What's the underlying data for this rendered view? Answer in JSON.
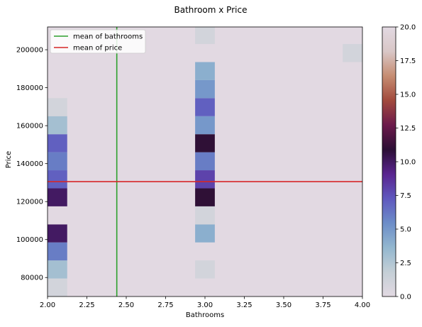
{
  "chart_data": {
    "type": "heatmap",
    "title": "Bathroom x Price",
    "xlabel": "Bathrooms",
    "ylabel": "Price",
    "xlim": [
      2.0,
      4.0
    ],
    "ylim": [
      70000,
      212000
    ],
    "xticks": [
      "2.00",
      "2.25",
      "2.50",
      "2.75",
      "3.00",
      "3.25",
      "3.50",
      "3.75",
      "4.00"
    ],
    "yticks": [
      "80000",
      "100000",
      "120000",
      "140000",
      "160000",
      "180000",
      "200000"
    ],
    "bin_width": 0.125,
    "bin_height": 9500,
    "background_count": 0,
    "cells": [
      {
        "x": 2.0625,
        "y": 74750,
        "count": 1
      },
      {
        "x": 2.0625,
        "y": 84250,
        "count": 3
      },
      {
        "x": 2.0625,
        "y": 93750,
        "count": 6
      },
      {
        "x": 2.0625,
        "y": 103250,
        "count": 10
      },
      {
        "x": 2.0625,
        "y": 112750,
        "count": 0
      },
      {
        "x": 2.0625,
        "y": 122250,
        "count": 10
      },
      {
        "x": 2.0625,
        "y": 131750,
        "count": 7
      },
      {
        "x": 2.0625,
        "y": 141250,
        "count": 6
      },
      {
        "x": 2.0625,
        "y": 150750,
        "count": 7
      },
      {
        "x": 2.0625,
        "y": 160250,
        "count": 3
      },
      {
        "x": 2.0625,
        "y": 169750,
        "count": 1
      },
      {
        "x": 3.0,
        "y": 84250,
        "count": 1
      },
      {
        "x": 3.0,
        "y": 103250,
        "count": 4
      },
      {
        "x": 3.0,
        "y": 112750,
        "count": 1
      },
      {
        "x": 3.0,
        "y": 122250,
        "count": 11
      },
      {
        "x": 3.0,
        "y": 131750,
        "count": 8
      },
      {
        "x": 3.0,
        "y": 141250,
        "count": 6
      },
      {
        "x": 3.0,
        "y": 150750,
        "count": 11
      },
      {
        "x": 3.0,
        "y": 160250,
        "count": 5
      },
      {
        "x": 3.0,
        "y": 169750,
        "count": 7
      },
      {
        "x": 3.0,
        "y": 179250,
        "count": 5
      },
      {
        "x": 3.0,
        "y": 188750,
        "count": 4
      },
      {
        "x": 3.0,
        "y": 207750,
        "count": 1
      },
      {
        "x": 3.9375,
        "y": 198250,
        "count": 1
      }
    ],
    "lines": [
      {
        "orientation": "vertical",
        "value": 2.44,
        "color": "#2ca02c",
        "label": "mean of bathrooms"
      },
      {
        "orientation": "horizontal",
        "value": 130500,
        "color": "#d62728",
        "label": "mean of price"
      }
    ],
    "legend_position": "top-left",
    "colorbar": {
      "min": 0,
      "max": 20,
      "ticks": [
        "0.0",
        "2.5",
        "5.0",
        "7.5",
        "10.0",
        "12.5",
        "15.0",
        "17.5",
        "20.0"
      ],
      "colormap": [
        "#e2d9e2",
        "#c4cfd6",
        "#93b7cf",
        "#6c8dc8",
        "#5f58be",
        "#59248f",
        "#2c0f35",
        "#6c1a4b",
        "#a24a3d",
        "#c68d72",
        "#d9c7c7",
        "#e2d9e2"
      ]
    }
  }
}
